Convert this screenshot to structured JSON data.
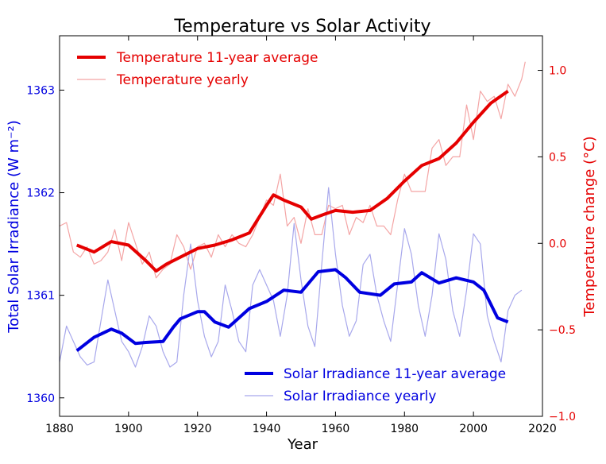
{
  "chart_data": {
    "type": "line",
    "title": "Temperature vs Solar Activity",
    "xlabel": "Year",
    "ylabel_left": "Total Solar Irradiance (W m⁻²)",
    "ylabel_right": "Temperature change (°C)",
    "xlim": [
      1880,
      2020
    ],
    "ylim_left": [
      1359.82,
      1363.53
    ],
    "ylim_right": [
      -1.0,
      1.2
    ],
    "x_ticks": [
      "1880",
      "1900",
      "1920",
      "1940",
      "1960",
      "1980",
      "2000",
      "2020"
    ],
    "y_left_ticks": [
      "1360",
      "1361",
      "1362",
      "1363"
    ],
    "y_right_ticks": [
      "−1.0",
      "−0.5",
      "0.0",
      "0.5",
      "1.0"
    ],
    "grid": false,
    "legends": [
      {
        "placement": "top-left",
        "entries": [
          "Temperature 11-year average",
          "Temperature yearly"
        ]
      },
      {
        "placement": "bottom-right",
        "entries": [
          "Solar Irradiance 11-year average",
          "Solar Irradiance yearly"
        ]
      }
    ],
    "colors": {
      "temperature": "#e50000",
      "temperature_yearly": "#f4a5a5",
      "solar": "#0000e0",
      "solar_yearly": "#a8a8ec"
    },
    "series": [
      {
        "name": "Temperature 11-year average",
        "axis": "right",
        "x": [
          1885,
          1890,
          1895,
          1900,
          1905,
          1908,
          1911,
          1915,
          1920,
          1925,
          1930,
          1935,
          1940,
          1942,
          1945,
          1950,
          1953,
          1957,
          1960,
          1965,
          1970,
          1975,
          1980,
          1985,
          1990,
          1995,
          2000,
          2005,
          2010
        ],
        "y": [
          -0.01,
          -0.05,
          0.01,
          -0.01,
          -0.1,
          -0.16,
          -0.12,
          -0.08,
          -0.03,
          -0.01,
          0.02,
          0.06,
          0.22,
          0.28,
          0.25,
          0.21,
          0.14,
          0.17,
          0.19,
          0.18,
          0.19,
          0.26,
          0.36,
          0.45,
          0.49,
          0.58,
          0.7,
          0.81,
          0.88
        ]
      },
      {
        "name": "Temperature yearly",
        "axis": "right",
        "x": [
          1880,
          1882,
          1884,
          1886,
          1888,
          1890,
          1892,
          1894,
          1896,
          1898,
          1900,
          1902,
          1904,
          1906,
          1908,
          1910,
          1912,
          1914,
          1916,
          1918,
          1920,
          1922,
          1924,
          1926,
          1928,
          1930,
          1932,
          1934,
          1936,
          1938,
          1940,
          1942,
          1944,
          1946,
          1948,
          1950,
          1952,
          1954,
          1956,
          1958,
          1960,
          1962,
          1964,
          1966,
          1968,
          1970,
          1972,
          1974,
          1976,
          1978,
          1980,
          1982,
          1984,
          1986,
          1988,
          1990,
          1992,
          1994,
          1996,
          1998,
          2000,
          2002,
          2004,
          2006,
          2008,
          2010,
          2012,
          2014,
          2015
        ],
        "y": [
          0.1,
          0.12,
          -0.05,
          -0.08,
          -0.02,
          -0.12,
          -0.1,
          -0.05,
          0.08,
          -0.1,
          0.12,
          0.0,
          -0.12,
          -0.05,
          -0.2,
          -0.15,
          -0.12,
          0.05,
          -0.02,
          -0.15,
          -0.02,
          0.0,
          -0.08,
          0.05,
          -0.02,
          0.05,
          0.0,
          -0.02,
          0.05,
          0.15,
          0.25,
          0.22,
          0.4,
          0.1,
          0.15,
          0.0,
          0.2,
          0.05,
          0.05,
          0.22,
          0.2,
          0.22,
          0.05,
          0.15,
          0.12,
          0.22,
          0.1,
          0.1,
          0.05,
          0.25,
          0.4,
          0.3,
          0.3,
          0.3,
          0.55,
          0.6,
          0.45,
          0.5,
          0.5,
          0.8,
          0.6,
          0.88,
          0.82,
          0.85,
          0.72,
          0.92,
          0.85,
          0.95,
          1.05
        ]
      },
      {
        "name": "Solar Irradiance 11-year average",
        "axis": "left",
        "x": [
          1885,
          1890,
          1895,
          1898,
          1902,
          1905,
          1910,
          1913,
          1915,
          1920,
          1922,
          1925,
          1929,
          1932,
          1935,
          1940,
          1945,
          1950,
          1955,
          1960,
          1963,
          1967,
          1973,
          1977,
          1982,
          1985,
          1990,
          1995,
          2000,
          2003,
          2007,
          2010
        ],
        "y": [
          1360.46,
          1360.59,
          1360.67,
          1360.63,
          1360.53,
          1360.54,
          1360.55,
          1360.69,
          1360.77,
          1360.84,
          1360.84,
          1360.74,
          1360.69,
          1360.78,
          1360.87,
          1360.94,
          1361.05,
          1361.03,
          1361.23,
          1361.25,
          1361.17,
          1361.03,
          1361.0,
          1361.11,
          1361.13,
          1361.22,
          1361.12,
          1361.17,
          1361.13,
          1361.05,
          1360.78,
          1360.74
        ]
      },
      {
        "name": "Solar Irradiance yearly",
        "axis": "left",
        "x": [
          1880,
          1882,
          1884,
          1886,
          1888,
          1890,
          1892,
          1894,
          1896,
          1898,
          1900,
          1902,
          1904,
          1906,
          1908,
          1910,
          1912,
          1914,
          1916,
          1918,
          1920,
          1922,
          1924,
          1926,
          1928,
          1930,
          1932,
          1934,
          1936,
          1938,
          1940,
          1942,
          1944,
          1946,
          1948,
          1950,
          1952,
          1954,
          1956,
          1958,
          1960,
          1962,
          1964,
          1966,
          1968,
          1970,
          1972,
          1974,
          1976,
          1978,
          1980,
          1982,
          1984,
          1986,
          1988,
          1990,
          1992,
          1994,
          1996,
          1998,
          2000,
          2002,
          2004,
          2006,
          2008,
          2010,
          2012,
          2014
        ],
        "y": [
          1360.35,
          1360.7,
          1360.55,
          1360.4,
          1360.32,
          1360.35,
          1360.75,
          1361.15,
          1360.85,
          1360.55,
          1360.45,
          1360.3,
          1360.5,
          1360.8,
          1360.7,
          1360.45,
          1360.3,
          1360.35,
          1361.0,
          1361.5,
          1360.95,
          1360.6,
          1360.4,
          1360.55,
          1361.1,
          1360.85,
          1360.55,
          1360.45,
          1361.1,
          1361.25,
          1361.1,
          1360.95,
          1360.6,
          1361.0,
          1361.7,
          1361.15,
          1360.7,
          1360.5,
          1361.3,
          1362.05,
          1361.4,
          1360.9,
          1360.6,
          1360.75,
          1361.3,
          1361.4,
          1361.0,
          1360.75,
          1360.55,
          1361.1,
          1361.65,
          1361.4,
          1360.9,
          1360.6,
          1361.0,
          1361.6,
          1361.35,
          1360.85,
          1360.6,
          1361.05,
          1361.6,
          1361.5,
          1360.8,
          1360.55,
          1360.35,
          1360.85,
          1361.0,
          1361.05
        ]
      }
    ]
  }
}
